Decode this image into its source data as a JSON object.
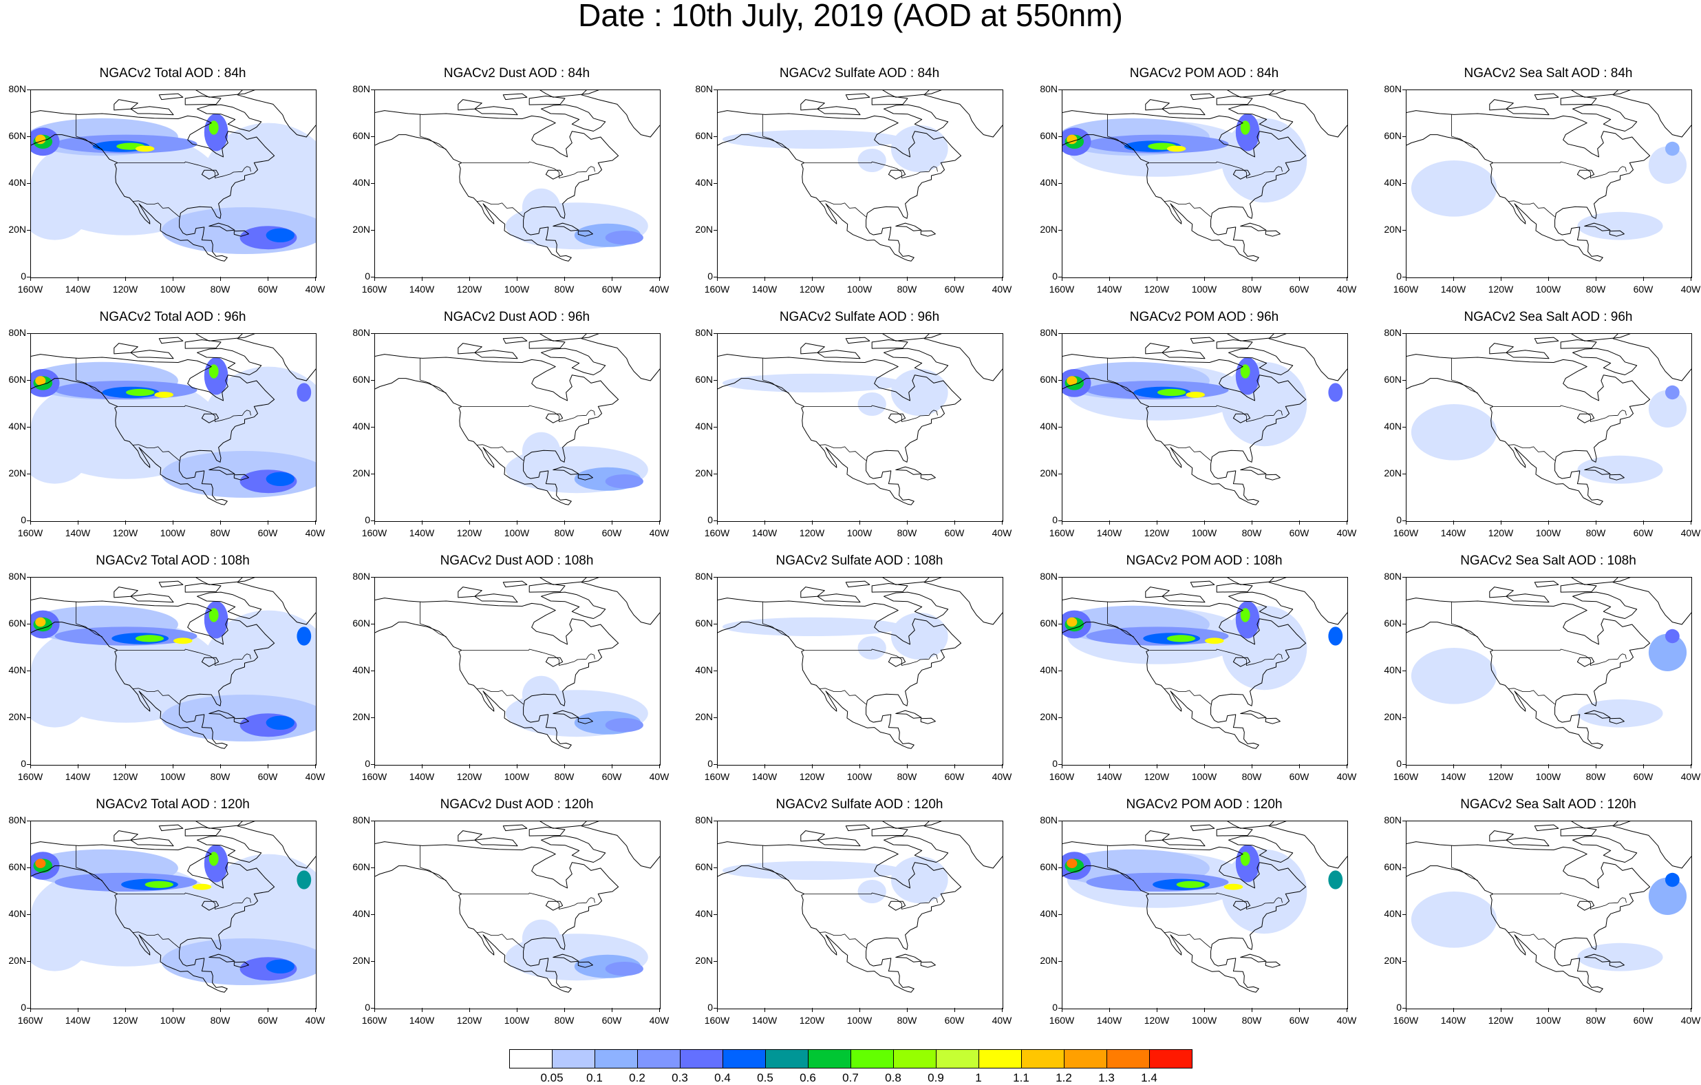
{
  "title": "Date : 10th July, 2019 (AOD at 550nm)",
  "rows": [
    {
      "hour": "84h",
      "panels": [
        "NGACv2 Total AOD : 84h",
        "NGACv2 Dust AOD : 84h",
        "NGACv2 Sulfate AOD : 84h",
        "NGACv2 POM AOD : 84h",
        "NGACv2 Sea Salt AOD : 84h"
      ]
    },
    {
      "hour": "96h",
      "panels": [
        "NGACv2 Total AOD : 96h",
        "NGACv2 Dust AOD : 96h",
        "NGACv2 Sulfate AOD : 96h",
        "NGACv2 POM AOD : 96h",
        "NGACv2 Sea Salt AOD : 96h"
      ]
    },
    {
      "hour": "108h",
      "panels": [
        "NGACv2 Total AOD : 108h",
        "NGACv2 Dust AOD : 108h",
        "NGACv2 Sulfate AOD : 108h",
        "NGACv2 POM AOD : 108h",
        "NGACv2 Sea Salt AOD : 108h"
      ]
    },
    {
      "hour": "120h",
      "panels": [
        "NGACv2 Total AOD : 120h",
        "NGACv2 Dust AOD : 120h",
        "NGACv2 Sulfate AOD : 120h",
        "NGACv2 POM AOD : 120h",
        "NGACv2 Sea Salt  AOD : 120h"
      ]
    }
  ],
  "species": [
    "total",
    "dust",
    "sulfate",
    "pom",
    "seasalt"
  ],
  "lat_labels": [
    "0",
    "20N",
    "40N",
    "60N",
    "80N"
  ],
  "lon_labels": [
    "160W",
    "140W",
    "120W",
    "100W",
    "80W",
    "60W",
    "40W"
  ],
  "map_extent": {
    "lon": [
      -160,
      -40
    ],
    "lat": [
      0,
      80
    ]
  },
  "colorbar": {
    "levels": [
      "0.05",
      "0.1",
      "0.2",
      "0.3",
      "0.4",
      "0.5",
      "0.6",
      "0.7",
      "0.8",
      "0.9",
      "1",
      "1.1",
      "1.2",
      "1.3",
      "1.4"
    ],
    "colors": [
      "#ffffff",
      "#d6e2ff",
      "#b5c9ff",
      "#8eb2ff",
      "#7f96ff",
      "#6370ff",
      "#0063ff",
      "#009696",
      "#00c633",
      "#63ff00",
      "#96ff00",
      "#c6ff33",
      "#ffff00",
      "#ffc600",
      "#ffa000",
      "#ff7c00",
      "#ff1900"
    ]
  }
}
